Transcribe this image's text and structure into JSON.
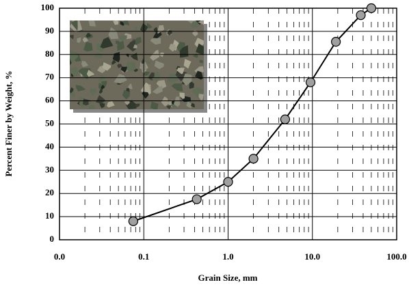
{
  "chart_data": {
    "type": "line",
    "x_label": "Grain Size, mm",
    "y_label": "Percent Finer by Weight, %",
    "x": [
      0.075,
      0.425,
      1.0,
      2.0,
      4.75,
      9.5,
      19,
      37.5,
      50
    ],
    "series": [
      {
        "color": "#000000",
        "values": [
          8,
          17.5,
          25,
          35,
          52,
          68,
          85.5,
          97,
          100
        ]
      }
    ],
    "x_log": true,
    "xlim": [
      0.01,
      100
    ],
    "xticks": [
      {
        "value": 0.01,
        "label": "0.0"
      },
      0.1,
      {
        "value": 1,
        "label": "1.0"
      },
      {
        "value": 10,
        "label": "10.0"
      },
      {
        "value": 100,
        "label": "100.0"
      }
    ],
    "ylim": [
      0,
      100
    ],
    "yticks": [
      0,
      10,
      20,
      30,
      40,
      50,
      60,
      70,
      80,
      90,
      100
    ],
    "grid": true,
    "marker_color": "#a0a0a0"
  }
}
